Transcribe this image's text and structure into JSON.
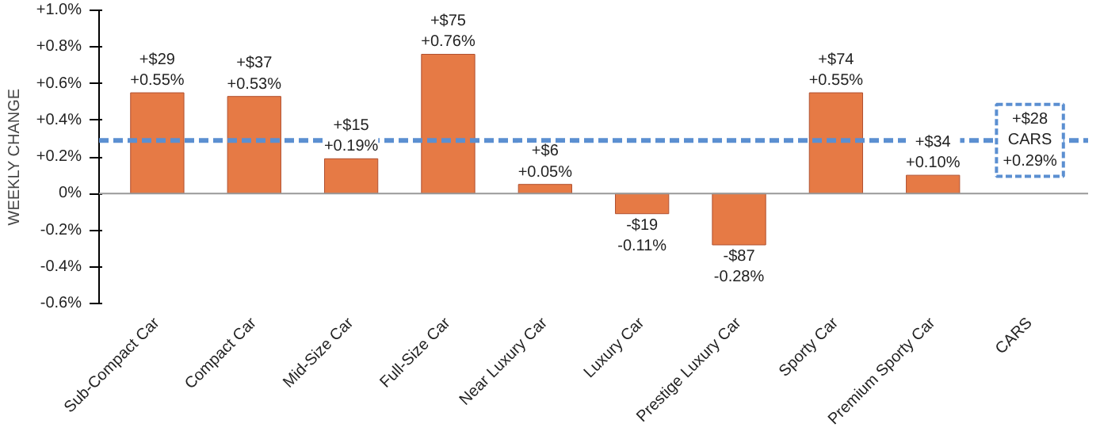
{
  "chart_data": {
    "type": "bar",
    "ylabel": "WEEKLY CHANGE",
    "categories": [
      "Sub-Compact Car",
      "Compact Car",
      "Mid-Size Car",
      "Full-Size Car",
      "Near Luxury Car",
      "Luxury Car",
      "Prestige Luxury Car",
      "Sporty Car",
      "Premium Sporty Car",
      "CARS"
    ],
    "values": [
      0.55,
      0.53,
      0.19,
      0.76,
      0.05,
      -0.11,
      -0.28,
      0.55,
      0.1,
      null
    ],
    "value_labels": [
      "+$29\n+0.55%",
      "+$37\n+0.53%",
      "+$15\n+0.19%",
      "+$75\n+0.76%",
      "+$6\n+0.05%",
      "-$19\n-0.11%",
      "-$87\n-0.28%",
      "+$74\n+0.55%",
      "+$34\n+0.10%",
      null
    ],
    "color": "#e67a45",
    "ylim": [
      -0.6,
      1.0
    ],
    "yticks": [
      {
        "value": -0.6,
        "label": "-0.6%"
      },
      {
        "value": -0.4,
        "label": "-0.4%"
      },
      {
        "value": -0.2,
        "label": "-0.2%"
      },
      {
        "value": 0,
        "label": "0%"
      },
      {
        "value": 0.2,
        "label": "+0.2%"
      },
      {
        "value": 0.4,
        "label": "+0.4%"
      },
      {
        "value": 0.6,
        "label": "+0.6%"
      },
      {
        "value": 0.8,
        "label": "+0.8%"
      },
      {
        "value": 1.0,
        "label": "+1.0%"
      }
    ],
    "ref_lines": [
      {
        "axis": "y",
        "value": 0.29,
        "label": "+$28\nCARS\n+0.29%",
        "color": "#5b8fd1",
        "line_style": "dashed"
      }
    ]
  }
}
